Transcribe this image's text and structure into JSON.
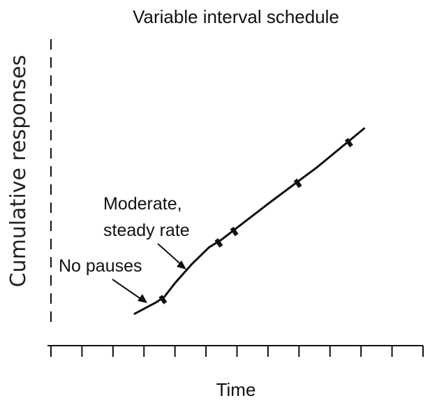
{
  "chart_data": {
    "type": "line",
    "title": "Variable interval schedule",
    "xlabel": "Time",
    "ylabel": "Cumulative responses",
    "xlim": [
      0,
      12
    ],
    "ylim": [
      0,
      12
    ],
    "x_tick_count": 12,
    "grid": false,
    "series": [
      {
        "x": [
          2.7,
          3.4,
          3.65,
          4.0,
          4.55,
          5.1,
          5.5,
          7.0,
          8.6,
          10.1
        ],
        "y": [
          1.25,
          1.7,
          1.9,
          2.45,
          3.2,
          3.85,
          4.15,
          5.55,
          7.0,
          8.5
        ]
      }
    ],
    "reinforcement_x": [
      3.6,
      5.4,
      5.9,
      7.95,
      9.6
    ],
    "annotations": [
      {
        "lines": [
          "No pauses"
        ],
        "x": 3.05,
        "y": 1.6
      },
      {
        "lines": [
          "Moderate,",
          "steady rate"
        ],
        "x": 4.35,
        "y": 3.0
      }
    ]
  }
}
